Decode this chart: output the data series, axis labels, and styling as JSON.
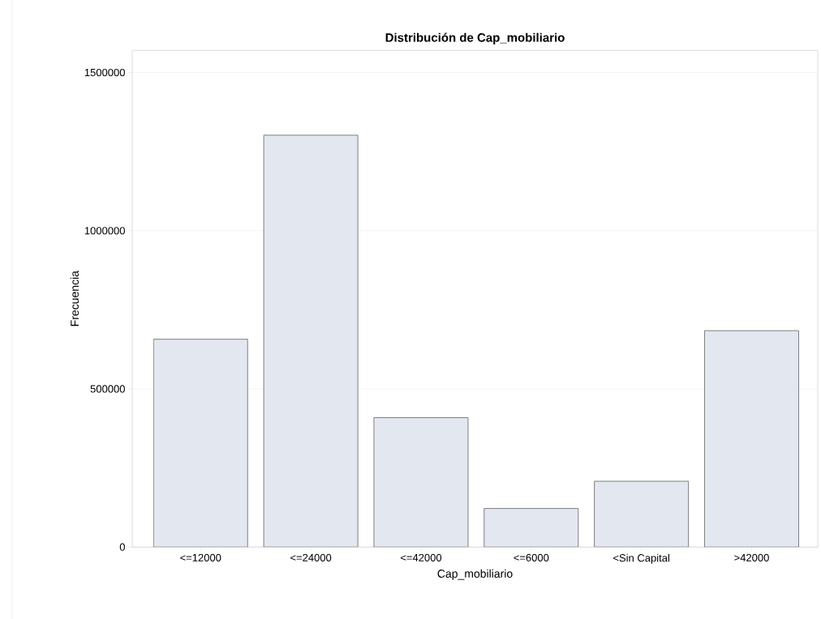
{
  "chart_data": {
    "type": "bar",
    "title": "Distribución de Cap_mobiliario",
    "xlabel": "Cap_mobiliario",
    "ylabel": "Frecuencia",
    "categories": [
      "<=12000",
      "<=24000",
      "<=42000",
      "<=6000",
      "<Sin Capital",
      ">42000"
    ],
    "values": [
      657000,
      1302000,
      409000,
      122000,
      208000,
      684000
    ],
    "color": "#e3e7f0",
    "ylim": [
      0,
      1570000
    ],
    "yticks": [
      0,
      500000,
      1000000,
      1500000
    ],
    "grid": "y"
  }
}
